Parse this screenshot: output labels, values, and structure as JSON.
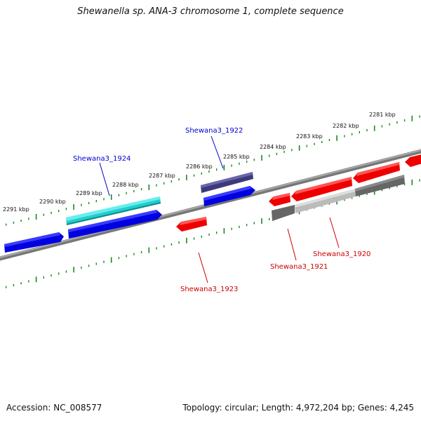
{
  "title": "Shewanella sp. ANA-3 chromosome 1, complete sequence",
  "footer": {
    "accession": "Accession: NC_008577",
    "summary": "Topology: circular; Length: 4,972,204 bp; Genes: 4,245"
  },
  "scale_labels": [
    "2281 kbp",
    "2282 kbp",
    "2283 kbp",
    "2284 kbp",
    "2285 kbp",
    "2286 kbp",
    "2287 kbp",
    "2288 kbp",
    "2289 kbp",
    "2290 kbp",
    "2291 kbp"
  ],
  "gene_labels": {
    "g1922": "Shewana3_1922",
    "g1924": "Shewana3_1924",
    "g1923": "Shewana3_1923",
    "g1921": "Shewana3_1921",
    "g1920": "Shewana3_1920"
  },
  "colors": {
    "forward_cds": "#0000e0",
    "reverse_cds": "#ee0000",
    "cyan_feature": "#22cccc",
    "purple_feature": "#3d3a7a",
    "grey_feature": "#666666",
    "light_grey_feature": "#bbbbbb",
    "backbone": "#888888",
    "ticks": "#1a8a1a",
    "label_blue": "#0000cc",
    "label_red": "#cc0000"
  }
}
